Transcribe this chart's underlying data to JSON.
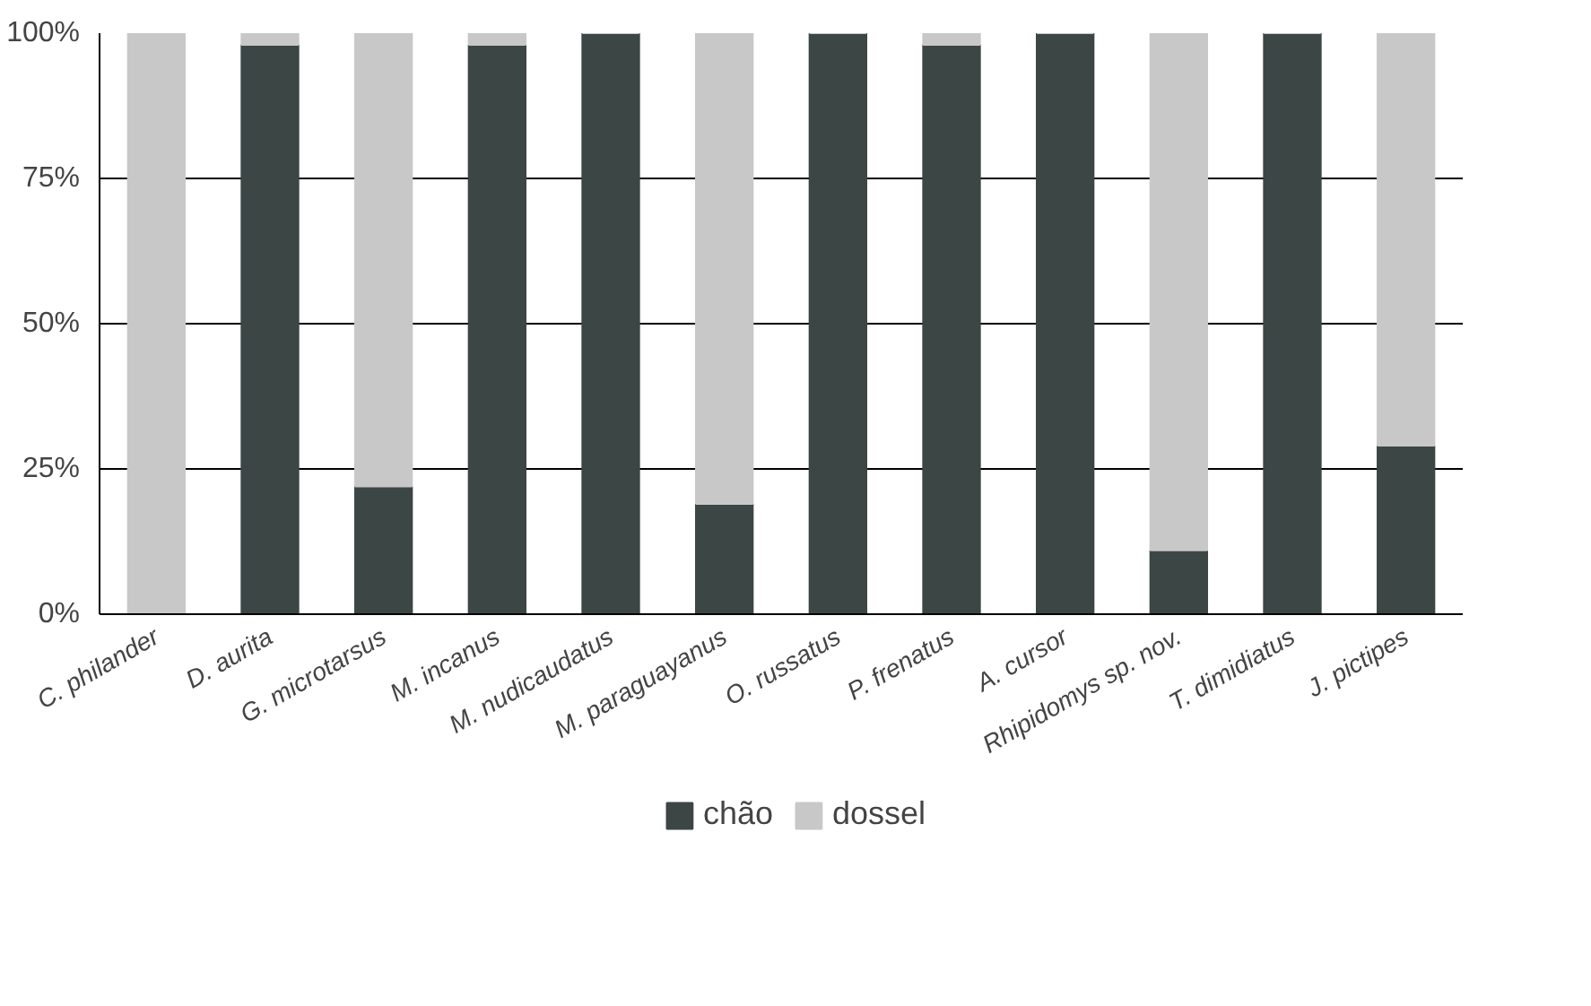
{
  "chart_data": {
    "type": "bar",
    "stacked": true,
    "categories": [
      "C. philander",
      "D. aurita",
      "G. microtarsus",
      "M. incanus",
      "M. nudicaudatus",
      "M. paraguayanus",
      "O. russatus",
      "P. frenatus",
      "A. cursor",
      "Rhipidomys sp. nov.",
      "T. dimidiatus",
      "J. pictipes"
    ],
    "series": [
      {
        "name": "chão",
        "color": "#3c4645",
        "values": [
          0,
          98,
          22,
          98,
          100,
          19,
          100,
          98,
          100,
          11,
          100,
          29
        ]
      },
      {
        "name": "dossel",
        "color": "#c8c8c8",
        "values": [
          100,
          2,
          78,
          2,
          0,
          81,
          0,
          2,
          0,
          89,
          0,
          71
        ]
      }
    ],
    "ylim": [
      0,
      100
    ],
    "yticks": [
      {
        "value": 0,
        "label": "0%"
      },
      {
        "value": 25,
        "label": "25%"
      },
      {
        "value": 50,
        "label": "50%"
      },
      {
        "value": 75,
        "label": "75%"
      },
      {
        "value": 100,
        "label": "100%"
      }
    ],
    "grid": "y",
    "legend": "bottom"
  }
}
